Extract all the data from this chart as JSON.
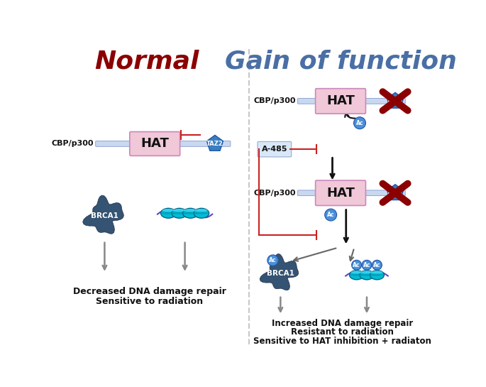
{
  "title_normal": "Normal",
  "title_gof": "Gain of function",
  "title_normal_color": "#8B0000",
  "title_gof_color": "#4a6fa5",
  "bg_color": "#ffffff",
  "divider_color": "#aaaaaa",
  "hat_box_color": "#f0c8d8",
  "hat_text_color": "#000000",
  "taz2_color": "#3a7fbf",
  "taz2_text_color": "#ffffff",
  "cbp_line_color": "#c8d8f0",
  "brca1_color": "#2a4a6a",
  "ac_color": "#4a90d9",
  "inhibit_color": "#cc2222",
  "a485_box_color": "#d8e8f8",
  "text_bottom_normal": [
    "Decreased DNA damage repair",
    "Sensitive to radiation"
  ],
  "text_bottom_gof": [
    "Increased DNA damage repair",
    "Resistant to radiation",
    "Sensitive to HAT inhibition + radiaton"
  ]
}
